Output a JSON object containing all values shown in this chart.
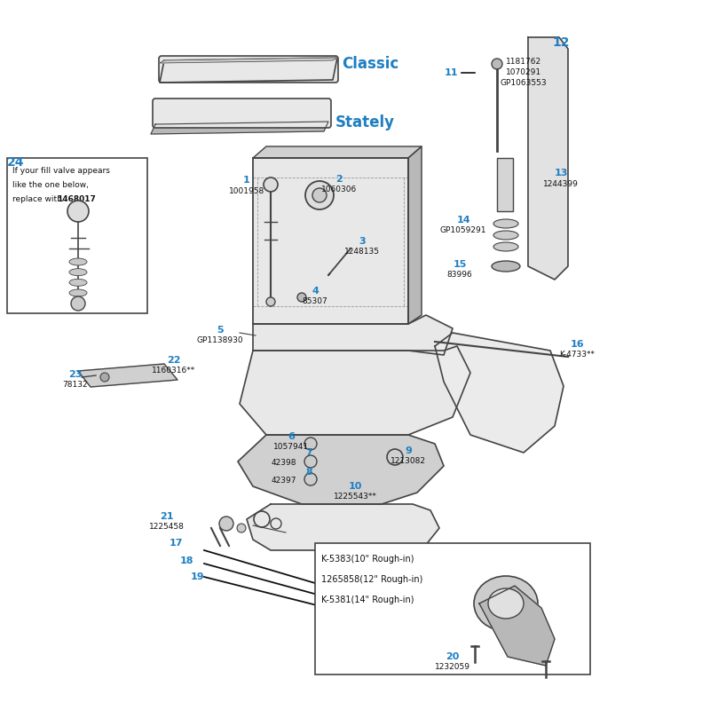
{
  "bg_color": "#ffffff",
  "blue": "#1e7fc2",
  "black": "#111111",
  "line_color": "#444444",
  "fill_light": "#e8e8e8",
  "fill_mid": "#d0d0d0",
  "fill_dark": "#b8b8b8",
  "figsize": [
    8.0,
    8.0
  ],
  "dpi": 100,
  "box24_text_1": "If your fill valve appears",
  "box24_text_2": "like the one below,",
  "box24_text_3": "replace with ",
  "box24_bold": "1468017",
  "box20_text_1": "K-5383(10\" Rough-in)",
  "box20_text_2": "1265858(12\" Rough-in)",
  "box20_text_3": "K-5381(14\" Rough-in)",
  "classic_text": "Classic",
  "stately_text": "Stately"
}
